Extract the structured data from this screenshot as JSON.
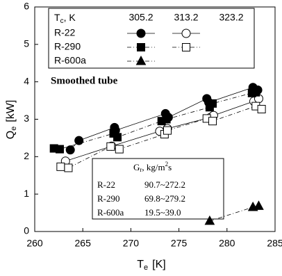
{
  "chart_data": {
    "type": "scatter",
    "x_label": {
      "symbol": "T",
      "sub": "e",
      "unit": "[K]"
    },
    "y_label": {
      "symbol": "Q",
      "sub": "e",
      "unit": "[kW]"
    },
    "xlim": [
      260,
      285
    ],
    "xticks": [
      260,
      265,
      270,
      275,
      280,
      285
    ],
    "ylim": [
      0,
      6
    ],
    "yticks": [
      0,
      1,
      2,
      3,
      4,
      5,
      6
    ],
    "annotation": "Smoothed tube",
    "legend": {
      "symbol": "T",
      "sub": "c",
      "unit": ", K",
      "columns": [
        "305.2",
        "313.2",
        "323.2"
      ]
    },
    "series": [
      {
        "name": "R-22",
        "column": 0,
        "marker": "circle",
        "filled": true,
        "dash": "none",
        "x": [
          263.7,
          264.6,
          268.3,
          268.4,
          273.6,
          273.9,
          277.9,
          278.1,
          282.7,
          283.2
        ],
        "values": [
          2.18,
          2.43,
          2.78,
          2.7,
          3.15,
          3.05,
          3.55,
          3.45,
          3.85,
          3.78
        ]
      },
      {
        "name": "R-22",
        "column": 1,
        "marker": "circle",
        "filled": false,
        "dash": "none",
        "x": [
          263.2,
          268.0,
          273.0,
          273.8,
          278.3,
          278.6,
          282.8,
          283.3
        ],
        "values": [
          1.88,
          2.28,
          2.68,
          2.75,
          3.05,
          3.1,
          3.48,
          3.55
        ]
      },
      {
        "name": "R-290",
        "column": 0,
        "marker": "square",
        "filled": true,
        "dash": "6 3 1 3",
        "x": [
          262.0,
          262.6,
          268.2,
          268.6,
          273.2,
          273.7,
          278.2,
          278.5,
          282.6,
          283.0
        ],
        "values": [
          2.22,
          2.2,
          2.62,
          2.52,
          2.95,
          3.0,
          3.32,
          3.42,
          3.7,
          3.72
        ]
      },
      {
        "name": "R-290",
        "column": 1,
        "marker": "square",
        "filled": false,
        "dash": "6 3 1 3",
        "x": [
          262.7,
          263.5,
          267.9,
          268.8,
          273.5,
          273.8,
          277.9,
          278.5,
          283.0,
          283.6
        ],
        "values": [
          1.73,
          1.7,
          2.27,
          2.2,
          2.6,
          2.7,
          3.02,
          2.95,
          3.35,
          3.27
        ]
      },
      {
        "name": "R-600a",
        "column": 0,
        "marker": "triangle",
        "filled": true,
        "dash": "6 3 1 3",
        "x": [
          278.2,
          282.7,
          283.3
        ],
        "values": [
          0.28,
          0.65,
          0.68
        ]
      }
    ],
    "gr_table": {
      "symbol": "G",
      "sub": "r",
      "unit": ", kg/m",
      "sup": "2",
      "unit_end": "s",
      "rows": [
        [
          "R-22",
          "90.7~272.2"
        ],
        [
          "R-290",
          "69.8~279.2"
        ],
        [
          "R-600a",
          "19.5~39.0"
        ]
      ]
    }
  }
}
